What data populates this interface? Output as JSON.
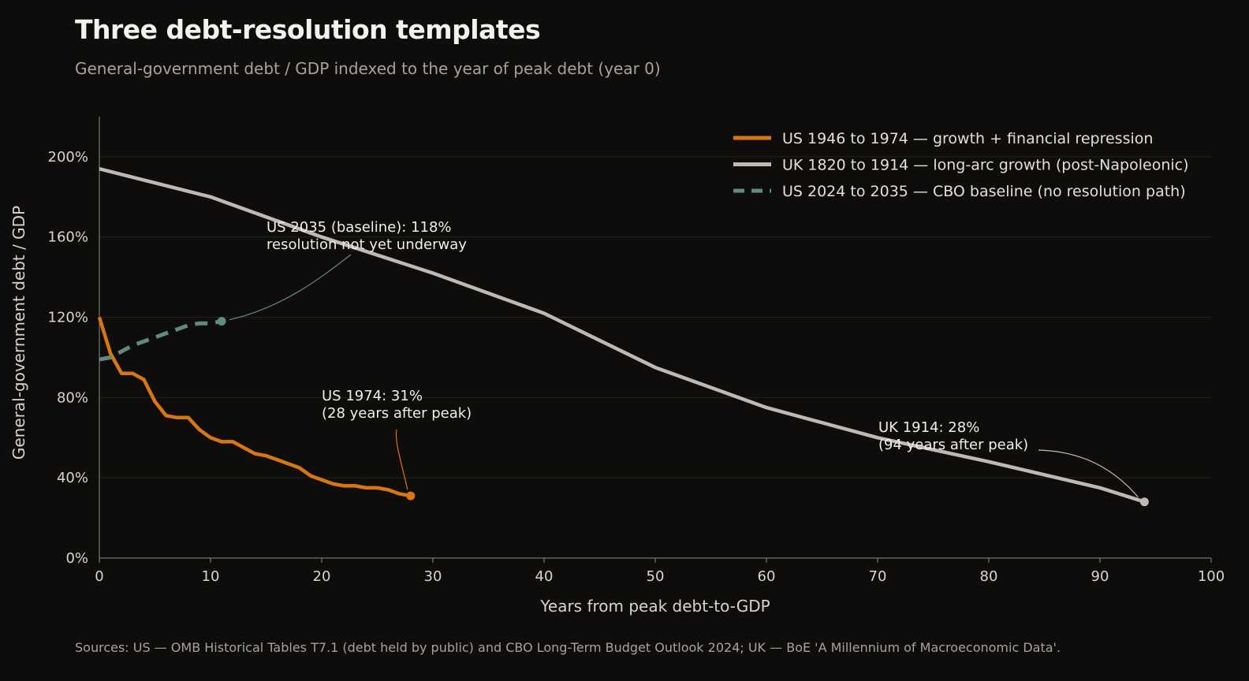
{
  "title": "Three debt-resolution templates",
  "subtitle": "General-government debt / GDP indexed to the year of peak debt (year 0)",
  "source": "Sources: US — OMB Historical Tables T7.1 (debt held by public) and CBO Long-Term Budget Outlook 2024; UK — BoE 'A Millennium of Macroeconomic Data'.",
  "chart_data": {
    "type": "line",
    "xlabel": "Years from peak debt-to-GDP",
    "ylabel": "General-government debt / GDP",
    "xlim": [
      0,
      100
    ],
    "ylim": [
      0,
      200
    ],
    "x_ticks": [
      "0",
      "10",
      "20",
      "30",
      "40",
      "50",
      "60",
      "70",
      "80",
      "90",
      "100"
    ],
    "y_ticks": [
      "0%",
      "40%",
      "80%",
      "120%",
      "160%",
      "200%"
    ],
    "grid": "horizontal",
    "legend_position": "top-right",
    "series": [
      {
        "name": "US 1946 to 1974 — growth + financial repression",
        "color": "#d9770f",
        "style": "solid",
        "x": [
          0,
          1,
          2,
          3,
          4,
          5,
          6,
          7,
          8,
          9,
          10,
          11,
          12,
          13,
          14,
          15,
          16,
          17,
          18,
          19,
          20,
          21,
          22,
          23,
          24,
          25,
          26,
          27,
          28
        ],
        "y": [
          120,
          102,
          92,
          92,
          89,
          78,
          71,
          70,
          70,
          64,
          60,
          58,
          58,
          55,
          52,
          51,
          49,
          47,
          45,
          41,
          39,
          37,
          36,
          36,
          35,
          35,
          34,
          32,
          31
        ]
      },
      {
        "name": "UK 1820 to 1914 — long-arc growth (post-Napoleonic)",
        "color": "#bdb9b3",
        "style": "solid",
        "x": [
          0,
          10,
          20,
          30,
          40,
          50,
          60,
          70,
          80,
          90,
          94
        ],
        "y": [
          194,
          180,
          160,
          142,
          122,
          95,
          75,
          60,
          48,
          35,
          28
        ]
      },
      {
        "name": "US 2024 to 2035 — CBO baseline (no resolution path)",
        "color": "#5f8c80",
        "style": "dashed",
        "x": [
          0,
          1,
          2,
          3,
          4,
          5,
          6,
          7,
          8,
          9,
          10,
          11
        ],
        "y": [
          99,
          100,
          103,
          106,
          108,
          110,
          112,
          114,
          116,
          117,
          117,
          118
        ]
      }
    ],
    "annotations": [
      {
        "text": [
          "US 2035 (baseline): 118%",
          "resolution not yet underway"
        ],
        "x": 11,
        "y": 118,
        "color": "#5f8c80"
      },
      {
        "text": [
          "US 1974: 31%",
          "(28 years after peak)"
        ],
        "x": 28,
        "y": 31,
        "color": "#d9770f"
      },
      {
        "text": [
          "UK 1914: 28%",
          "(94 years after peak)"
        ],
        "x": 94,
        "y": 28,
        "color": "#bdb9b3"
      }
    ]
  }
}
